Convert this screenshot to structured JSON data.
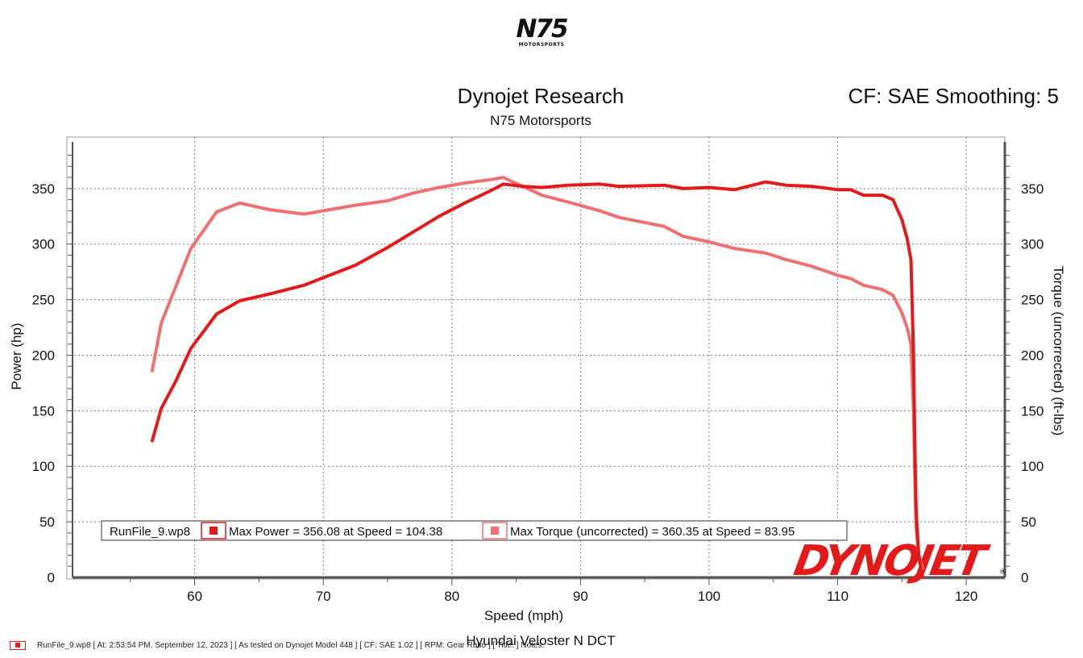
{
  "brand": {
    "logo_main": "N75",
    "logo_sub": "MOTORSPORTS",
    "dynojet_logo": "DYNOJET"
  },
  "colors": {
    "power": "#e31a1a",
    "torque": "#f07070",
    "grid": "#7a7a7a",
    "axis": "#555555"
  },
  "chart_data": {
    "type": "line",
    "title": "Dynojet Research",
    "subtitle": "N75 Motorsports",
    "header_right": "CF: SAE Smoothing: 5",
    "xlabel": "Speed (mph)",
    "ylabel": "Power (hp)",
    "y2label": "Torque (uncorrected) (ft-lbs)",
    "caption": "Hyundai Veloster N DCT",
    "xlim": [
      50.5,
      123
    ],
    "ylim": [
      0,
      392
    ],
    "y2lim": [
      0,
      392
    ],
    "x_ticks": [
      60,
      70,
      80,
      90,
      100,
      110,
      120
    ],
    "y_ticks": [
      0,
      50,
      100,
      150,
      200,
      250,
      300,
      350
    ],
    "y2_ticks": [
      0,
      50,
      100,
      150,
      200,
      250,
      300,
      350
    ],
    "grid": true,
    "legend": {
      "position": "bottom-left",
      "run": "RunFile_9.wp8",
      "items": [
        "Max Power = 356.08 at Speed = 104.38",
        "Max Torque (uncorrected) = 360.35 at Speed = 83.95"
      ]
    },
    "series": [
      {
        "name": "Power",
        "axis": "left",
        "x": [
          56.7,
          57.4,
          58.5,
          59.7,
          61.7,
          63.5,
          65.8,
          68.5,
          70.5,
          72.5,
          75.0,
          77.0,
          79.0,
          81.0,
          83.0,
          84.0,
          85.5,
          87.0,
          89.0,
          91.5,
          93.0,
          96.5,
          98.0,
          100.0,
          102.0,
          104.4,
          106.0,
          108.0,
          110.0,
          111.0,
          112.0,
          113.5,
          114.3,
          115.0,
          115.4,
          115.7,
          115.9,
          116.0,
          116.1,
          116.3,
          116.6
        ],
        "y": [
          123,
          152,
          176,
          206,
          237,
          249,
          255,
          263,
          272,
          281,
          297,
          311,
          325,
          337,
          348,
          354,
          352,
          351,
          353,
          354,
          352,
          353,
          350,
          351,
          349,
          356,
          353,
          352,
          349,
          349,
          344,
          344,
          340,
          322,
          305,
          286,
          200,
          120,
          60,
          20,
          0
        ]
      },
      {
        "name": "Torque (uncorrected)",
        "axis": "right",
        "x": [
          56.7,
          57.4,
          58.5,
          59.7,
          61.7,
          63.5,
          65.8,
          68.5,
          70.5,
          72.5,
          75.0,
          77.0,
          79.0,
          81.0,
          83.0,
          84.0,
          85.5,
          87.0,
          89.0,
          91.5,
          93.0,
          96.5,
          98.0,
          100.0,
          102.0,
          104.4,
          106.0,
          108.0,
          110.0,
          111.0,
          112.0,
          113.5,
          114.3,
          115.0,
          115.4,
          115.7,
          115.9,
          116.0,
          116.1,
          116.3,
          116.6
        ],
        "y": [
          186,
          229,
          261,
          296,
          329,
          337,
          331,
          327,
          331,
          335,
          339,
          346,
          351,
          355,
          358,
          360,
          352,
          344,
          338,
          330,
          324,
          316,
          307,
          302,
          296,
          292,
          286,
          280,
          272,
          269,
          263,
          259,
          254,
          238,
          225,
          210,
          150,
          90,
          45,
          20,
          8
        ]
      }
    ]
  },
  "footer": {
    "text": "RunFile_9.wp8 [ At: 2:53:54 PM, September 12, 2023 ] [ As tested on Dynojet Model 448 ] [ CF: SAE 1.02 ] [ RPM: Gear Ratio ] [ Title: ] Notes:"
  }
}
